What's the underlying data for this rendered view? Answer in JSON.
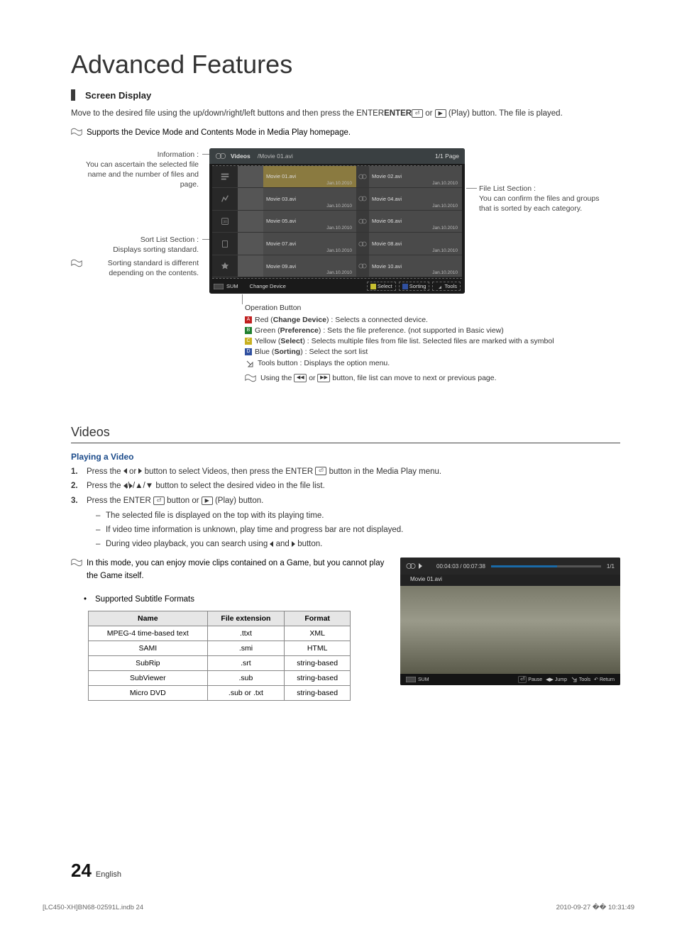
{
  "title": "Advanced Features",
  "section": "Screen Display",
  "intro": {
    "p1": "Move to the desired file using the up/down/right/left buttons and then press the ENTER",
    "p1b": " or ",
    "p1c": " (Play) button. The file is played.",
    "note": " Supports the Device Mode and Contents Mode in Media Play homepage."
  },
  "screen": {
    "label": "Videos",
    "path": "/Movie 01.avi",
    "page": "1/1 Page",
    "files": [
      {
        "a": "Movie 01.avi",
        "ad": "Jan.10.2010",
        "b": "Movie 02.avi",
        "bd": "Jan.10.2010",
        "sel": true
      },
      {
        "a": "Movie 03.avi",
        "ad": "Jan.10.2010",
        "b": "Movie 04.avi",
        "bd": "Jan.10.2010"
      },
      {
        "a": "Movie 05.avi",
        "ad": "Jan.10.2010",
        "b": "Movie 06.avi",
        "bd": "Jan.10.2010"
      },
      {
        "a": "Movie 07.avi",
        "ad": "Jan.10.2010",
        "b": "Movie 08.avi",
        "bd": "Jan.10.2010"
      },
      {
        "a": "Movie 09.avi",
        "ad": "Jan.10.2010",
        "b": "Movie 10.avi",
        "bd": "Jan.10.2010"
      }
    ],
    "foot": {
      "sum": "SUM",
      "change": "Change Device",
      "select": "Select",
      "sorting": "Sorting",
      "tools": "Tools",
      "colors": {
        "a": "#c02020",
        "c": "#c8c030",
        "d": "#3050a0"
      }
    }
  },
  "callouts": {
    "info1": "Information :",
    "info2": "You can ascertain the selected file name and the number of files and page.",
    "sort1": "Sort List Section :",
    "sort2": "Displays sorting standard.",
    "sortnote": "Sorting standard is different depending on the contents.",
    "file1": "File List Section :",
    "file2": "You can confirm the files and groups that is sorted by each category."
  },
  "ops": {
    "title": "Operation Button",
    "a": {
      "label": "A",
      "name": "Red (Change Device)",
      "desc": " : Selects a connected device.",
      "color": "#c02020"
    },
    "b": {
      "label": "B",
      "name": "Green (Preference)",
      "desc": "  : Sets the file preference. (not supported in Basic view)",
      "color": "#208030"
    },
    "c": {
      "label": "C",
      "name": "Yellow (Select)",
      "desc": " : Selects multiple files from file list. Selected files are marked with a symbol",
      "color": "#c8b020"
    },
    "d": {
      "label": "D",
      "name": "Blue (Sorting)",
      "desc": "  : Select the sort list",
      "color": "#3050a0"
    },
    "tools": " Tools button : Displays the option menu.",
    "note": " Using the ",
    "note2": " or ",
    "note3": " button, file list can move to next or previous page."
  },
  "videos": {
    "title": "Videos",
    "subhead": "Playing a Video",
    "s1a": "Press the ",
    "s1b": " or ",
    "s1c": " button to select Videos, then press the ENTER",
    "s1d": " button in the Media Play menu.",
    "s2a": "Press the ",
    "s2b": " button to select the desired video in the file list.",
    "s3a": "Press the ENTER",
    "s3b": " button or ",
    "s3c": " (Play) button.",
    "u1": "The selected file is displayed on the top with its playing time.",
    "u2": "If video time information is unknown, play time and progress bar are not displayed.",
    "u3a": "During video playback, you can search using ",
    "u3b": " and ",
    "u3c": " button.",
    "note1": "In this mode, you can enjoy movie clips contained on a Game, but you cannot play the Game itself.",
    "bullet": "Supported Subtitle Formats"
  },
  "table": {
    "cols": [
      "Name",
      "File extension",
      "Format"
    ],
    "rows": [
      [
        "MPEG-4 time-based text",
        ".ttxt",
        "XML"
      ],
      [
        "SAMI",
        ".smi",
        "HTML"
      ],
      [
        "SubRip",
        ".srt",
        "string-based"
      ],
      [
        "SubViewer",
        ".sub",
        "string-based"
      ],
      [
        "Micro DVD",
        ".sub or .txt",
        "string-based"
      ]
    ]
  },
  "player": {
    "time": "00:04:03 / 00:07:38",
    "page": "1/1",
    "file": "Movie 01.avi",
    "sum": "SUM",
    "pause": "Pause",
    "jump": "Jump",
    "tools": "Tools",
    "return": "Return"
  },
  "page": {
    "num": "24",
    "lang": "English"
  },
  "footer": {
    "left": "[LC450-XH]BN68-02591L.indb   24",
    "right": "2010-09-27   �� 10:31:49"
  }
}
